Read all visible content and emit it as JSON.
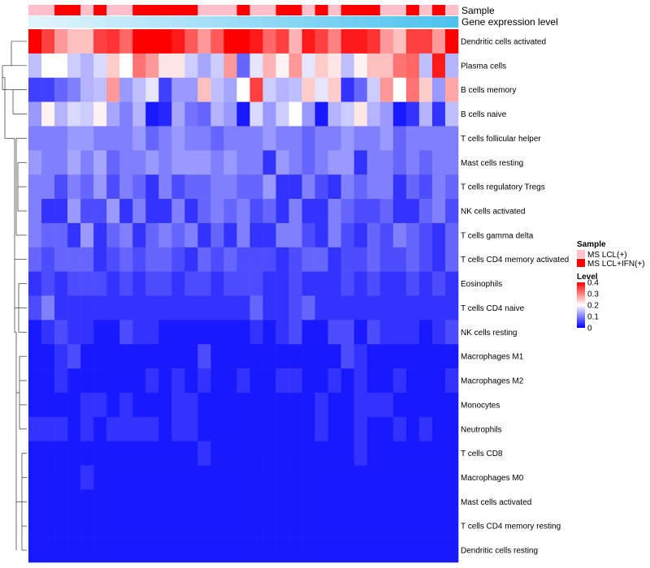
{
  "chart_data": {
    "type": "heatmap",
    "rows": [
      "Dendritic cells activated",
      "Plasma cells",
      "B cells memory",
      "B cells naive",
      "T cells follicular helper",
      "Mast cells resting",
      "T cells regulatory  Tregs",
      "NK cells activated",
      "T cells gamma delta",
      "T cells CD4 memory activated",
      "Eosinophils",
      "T cells CD4 naive",
      "NK cells resting",
      "Macrophages M1",
      "Macrophages M2",
      "Monocytes",
      "Neutrophils",
      "T cells CD8",
      "Macrophages M0",
      "Mast cells activated",
      "T cells CD4 memory resting",
      "Dendritic cells resting"
    ],
    "sample_groups": [
      "LCL",
      "LCL",
      "IFN",
      "IFN",
      "LCL",
      "IFN",
      "LCL",
      "LCL",
      "IFN",
      "IFN",
      "IFN",
      "IFN",
      "IFN",
      "LCL",
      "LCL",
      "LCL",
      "IFN",
      "LCL",
      "LCL",
      "IFN",
      "IFN",
      "LCL",
      "IFN",
      "LCL",
      "IFN",
      "IFN",
      "IFN",
      "LCL",
      "LCL",
      "IFN",
      "LCL",
      "IFN",
      "LCL"
    ],
    "gene_expression_level": [
      0.05,
      0.08,
      0.11,
      0.14,
      0.17,
      0.2,
      0.23,
      0.26,
      0.29,
      0.32,
      0.35,
      0.38,
      0.41,
      0.44,
      0.47,
      0.5,
      0.53,
      0.56,
      0.59,
      0.62,
      0.65,
      0.68,
      0.71,
      0.74,
      0.77,
      0.8,
      0.83,
      0.86,
      0.89,
      0.92,
      0.95,
      0.98,
      1.0
    ],
    "values": [
      [
        0.4,
        0.35,
        0.28,
        0.25,
        0.25,
        0.35,
        0.36,
        0.32,
        0.4,
        0.4,
        0.4,
        0.38,
        0.33,
        0.28,
        0.33,
        0.4,
        0.4,
        0.38,
        0.32,
        0.35,
        0.26,
        0.38,
        0.35,
        0.3,
        0.38,
        0.38,
        0.36,
        0.28,
        0.25,
        0.35,
        0.35,
        0.28,
        0.4
      ],
      [
        0.15,
        0.2,
        0.2,
        0.16,
        0.14,
        0.17,
        0.24,
        0.2,
        0.31,
        0.28,
        0.22,
        0.22,
        0.16,
        0.13,
        0.16,
        0.28,
        0.08,
        0.18,
        0.26,
        0.21,
        0.28,
        0.18,
        0.24,
        0.22,
        0.15,
        0.21,
        0.25,
        0.25,
        0.31,
        0.32,
        0.15,
        0.38,
        0.14
      ],
      [
        0.05,
        0.05,
        0.08,
        0.1,
        0.14,
        0.15,
        0.28,
        0.12,
        0.15,
        0.18,
        0.05,
        0.12,
        0.12,
        0.25,
        0.15,
        0.13,
        0.2,
        0.35,
        0.16,
        0.14,
        0.15,
        0.24,
        0.18,
        0.24,
        0.04,
        0.08,
        0.16,
        0.28,
        0.2,
        0.31,
        0.24,
        0.12,
        0.27
      ],
      [
        0.12,
        0.21,
        0.14,
        0.17,
        0.16,
        0.21,
        0.13,
        0.1,
        0.14,
        0.02,
        0.03,
        0.13,
        0.09,
        0.08,
        0.14,
        0.12,
        0.02,
        0.17,
        0.12,
        0.16,
        0.2,
        0.12,
        0.02,
        0.14,
        0.16,
        0.22,
        0.14,
        0.12,
        0.02,
        0.04,
        0.14,
        0.04,
        0.15
      ],
      [
        0.1,
        0.1,
        0.1,
        0.12,
        0.12,
        0.1,
        0.1,
        0.1,
        0.12,
        0.08,
        0.1,
        0.12,
        0.1,
        0.1,
        0.08,
        0.1,
        0.1,
        0.1,
        0.12,
        0.1,
        0.1,
        0.08,
        0.1,
        0.1,
        0.12,
        0.1,
        0.1,
        0.12,
        0.08,
        0.1,
        0.1,
        0.1,
        0.1
      ],
      [
        0.12,
        0.1,
        0.1,
        0.13,
        0.1,
        0.13,
        0.08,
        0.1,
        0.1,
        0.12,
        0.1,
        0.12,
        0.12,
        0.12,
        0.1,
        0.12,
        0.1,
        0.1,
        0.04,
        0.12,
        0.1,
        0.08,
        0.1,
        0.12,
        0.12,
        0.04,
        0.1,
        0.1,
        0.08,
        0.1,
        0.08,
        0.1,
        0.1
      ],
      [
        0.1,
        0.1,
        0.06,
        0.1,
        0.08,
        0.12,
        0.06,
        0.1,
        0.08,
        0.04,
        0.1,
        0.06,
        0.08,
        0.08,
        0.1,
        0.1,
        0.08,
        0.08,
        0.12,
        0.04,
        0.04,
        0.1,
        0.06,
        0.04,
        0.1,
        0.08,
        0.1,
        0.1,
        0.04,
        0.08,
        0.06,
        0.1,
        0.08
      ],
      [
        0.1,
        0.04,
        0.04,
        0.12,
        0.06,
        0.06,
        0.12,
        0.04,
        0.1,
        0.04,
        0.04,
        0.1,
        0.04,
        0.08,
        0.1,
        0.08,
        0.1,
        0.06,
        0.08,
        0.04,
        0.1,
        0.04,
        0.04,
        0.1,
        0.08,
        0.06,
        0.06,
        0.08,
        0.04,
        0.04,
        0.08,
        0.1,
        0.06
      ],
      [
        0.1,
        0.08,
        0.08,
        0.04,
        0.12,
        0.04,
        0.08,
        0.1,
        0.04,
        0.08,
        0.1,
        0.08,
        0.1,
        0.04,
        0.08,
        0.04,
        0.1,
        0.04,
        0.04,
        0.1,
        0.1,
        0.06,
        0.04,
        0.1,
        0.06,
        0.04,
        0.08,
        0.06,
        0.1,
        0.08,
        0.06,
        0.04,
        0.08
      ],
      [
        0.08,
        0.06,
        0.08,
        0.08,
        0.08,
        0.04,
        0.06,
        0.08,
        0.06,
        0.08,
        0.08,
        0.06,
        0.04,
        0.08,
        0.06,
        0.08,
        0.06,
        0.06,
        0.06,
        0.04,
        0.06,
        0.08,
        0.08,
        0.04,
        0.06,
        0.06,
        0.08,
        0.06,
        0.06,
        0.08,
        0.06,
        0.04,
        0.08
      ],
      [
        0.04,
        0.06,
        0.04,
        0.06,
        0.06,
        0.06,
        0.04,
        0.06,
        0.04,
        0.06,
        0.06,
        0.04,
        0.06,
        0.06,
        0.04,
        0.06,
        0.06,
        0.06,
        0.04,
        0.04,
        0.06,
        0.04,
        0.04,
        0.04,
        0.06,
        0.04,
        0.06,
        0.04,
        0.04,
        0.06,
        0.04,
        0.06,
        0.04
      ],
      [
        0.06,
        0.1,
        0.04,
        0.04,
        0.04,
        0.04,
        0.04,
        0.04,
        0.04,
        0.04,
        0.04,
        0.04,
        0.04,
        0.04,
        0.04,
        0.04,
        0.04,
        0.08,
        0.04,
        0.04,
        0.06,
        0.08,
        0.04,
        0.04,
        0.04,
        0.04,
        0.04,
        0.04,
        0.04,
        0.04,
        0.04,
        0.04,
        0.04
      ],
      [
        0.02,
        0.04,
        0.06,
        0.04,
        0.04,
        0.02,
        0.02,
        0.06,
        0.04,
        0.04,
        0.02,
        0.02,
        0.02,
        0.02,
        0.02,
        0.02,
        0.02,
        0.04,
        0.02,
        0.04,
        0.06,
        0.02,
        0.02,
        0.06,
        0.06,
        0.02,
        0.06,
        0.04,
        0.04,
        0.04,
        0.02,
        0.04,
        0.06
      ],
      [
        0.02,
        0.02,
        0.04,
        0.06,
        0.02,
        0.02,
        0.02,
        0.02,
        0.02,
        0.02,
        0.02,
        0.02,
        0.02,
        0.06,
        0.02,
        0.02,
        0.02,
        0.02,
        0.02,
        0.02,
        0.02,
        0.02,
        0.02,
        0.02,
        0.06,
        0.04,
        0.02,
        0.02,
        0.02,
        0.02,
        0.02,
        0.02,
        0.02
      ],
      [
        0.02,
        0.02,
        0.04,
        0.02,
        0.02,
        0.02,
        0.02,
        0.02,
        0.02,
        0.04,
        0.02,
        0.04,
        0.02,
        0.04,
        0.02,
        0.02,
        0.04,
        0.02,
        0.02,
        0.04,
        0.04,
        0.02,
        0.02,
        0.04,
        0.02,
        0.04,
        0.02,
        0.02,
        0.04,
        0.02,
        0.02,
        0.02,
        0.04
      ],
      [
        0.02,
        0.02,
        0.02,
        0.02,
        0.04,
        0.04,
        0.02,
        0.04,
        0.02,
        0.02,
        0.02,
        0.04,
        0.04,
        0.02,
        0.02,
        0.02,
        0.02,
        0.02,
        0.02,
        0.02,
        0.02,
        0.02,
        0.04,
        0.02,
        0.02,
        0.04,
        0.04,
        0.04,
        0.02,
        0.02,
        0.02,
        0.02,
        0.02
      ],
      [
        0.04,
        0.04,
        0.04,
        0.02,
        0.04,
        0.02,
        0.04,
        0.04,
        0.04,
        0.04,
        0.02,
        0.04,
        0.04,
        0.02,
        0.02,
        0.02,
        0.02,
        0.02,
        0.02,
        0.02,
        0.02,
        0.02,
        0.04,
        0.02,
        0.02,
        0.04,
        0.02,
        0.02,
        0.04,
        0.02,
        0.04,
        0.02,
        0.02
      ],
      [
        0.02,
        0.02,
        0.02,
        0.02,
        0.02,
        0.02,
        0.02,
        0.02,
        0.02,
        0.02,
        0.02,
        0.02,
        0.02,
        0.04,
        0.02,
        0.02,
        0.02,
        0.02,
        0.02,
        0.02,
        0.02,
        0.02,
        0.02,
        0.02,
        0.02,
        0.04,
        0.02,
        0.02,
        0.02,
        0.02,
        0.02,
        0.02,
        0.02
      ],
      [
        0.02,
        0.02,
        0.02,
        0.02,
        0.04,
        0.02,
        0.02,
        0.02,
        0.02,
        0.02,
        0.02,
        0.02,
        0.02,
        0.02,
        0.02,
        0.02,
        0.02,
        0.02,
        0.02,
        0.02,
        0.02,
        0.02,
        0.02,
        0.02,
        0.02,
        0.02,
        0.02,
        0.02,
        0.02,
        0.02,
        0.02,
        0.02,
        0.02
      ],
      [
        0.02,
        0.02,
        0.02,
        0.02,
        0.02,
        0.02,
        0.02,
        0.02,
        0.02,
        0.02,
        0.02,
        0.02,
        0.02,
        0.02,
        0.02,
        0.02,
        0.02,
        0.02,
        0.02,
        0.02,
        0.02,
        0.02,
        0.02,
        0.02,
        0.02,
        0.02,
        0.02,
        0.02,
        0.02,
        0.02,
        0.02,
        0.02,
        0.02
      ],
      [
        0.02,
        0.02,
        0.02,
        0.02,
        0.02,
        0.02,
        0.02,
        0.02,
        0.02,
        0.02,
        0.02,
        0.02,
        0.02,
        0.02,
        0.02,
        0.02,
        0.02,
        0.02,
        0.02,
        0.02,
        0.02,
        0.02,
        0.02,
        0.02,
        0.02,
        0.02,
        0.02,
        0.02,
        0.02,
        0.02,
        0.02,
        0.02,
        0.02
      ],
      [
        0.02,
        0.02,
        0.02,
        0.02,
        0.02,
        0.02,
        0.02,
        0.02,
        0.02,
        0.02,
        0.02,
        0.02,
        0.02,
        0.02,
        0.02,
        0.02,
        0.02,
        0.02,
        0.02,
        0.02,
        0.02,
        0.02,
        0.02,
        0.02,
        0.02,
        0.02,
        0.02,
        0.02,
        0.02,
        0.02,
        0.02,
        0.02,
        0.02
      ]
    ],
    "tracks": {
      "sample_label": "Sample",
      "gene_label": "Gene expression level"
    },
    "legend_sample": {
      "title": "Sample",
      "entries": [
        {
          "key": "LCL",
          "label": "MS LCL(+)",
          "color": "#ffc0cb"
        },
        {
          "key": "IFN",
          "label": "MS LCL+IFN(+)",
          "color": "#ff0000"
        }
      ]
    },
    "legend_level": {
      "title": "Level",
      "ticks": [
        0.4,
        0.3,
        0.2,
        0.1,
        0
      ],
      "tick_labels": [
        "0.4",
        "0.3",
        "0.2",
        "0.1",
        "0"
      ],
      "range": [
        0,
        0.4
      ]
    },
    "colors": {
      "low": "#0000ff",
      "mid": "#ffffff",
      "high": "#ff0000",
      "gene_low": "#e8f7ff",
      "gene_high": "#4fc3ef"
    }
  }
}
